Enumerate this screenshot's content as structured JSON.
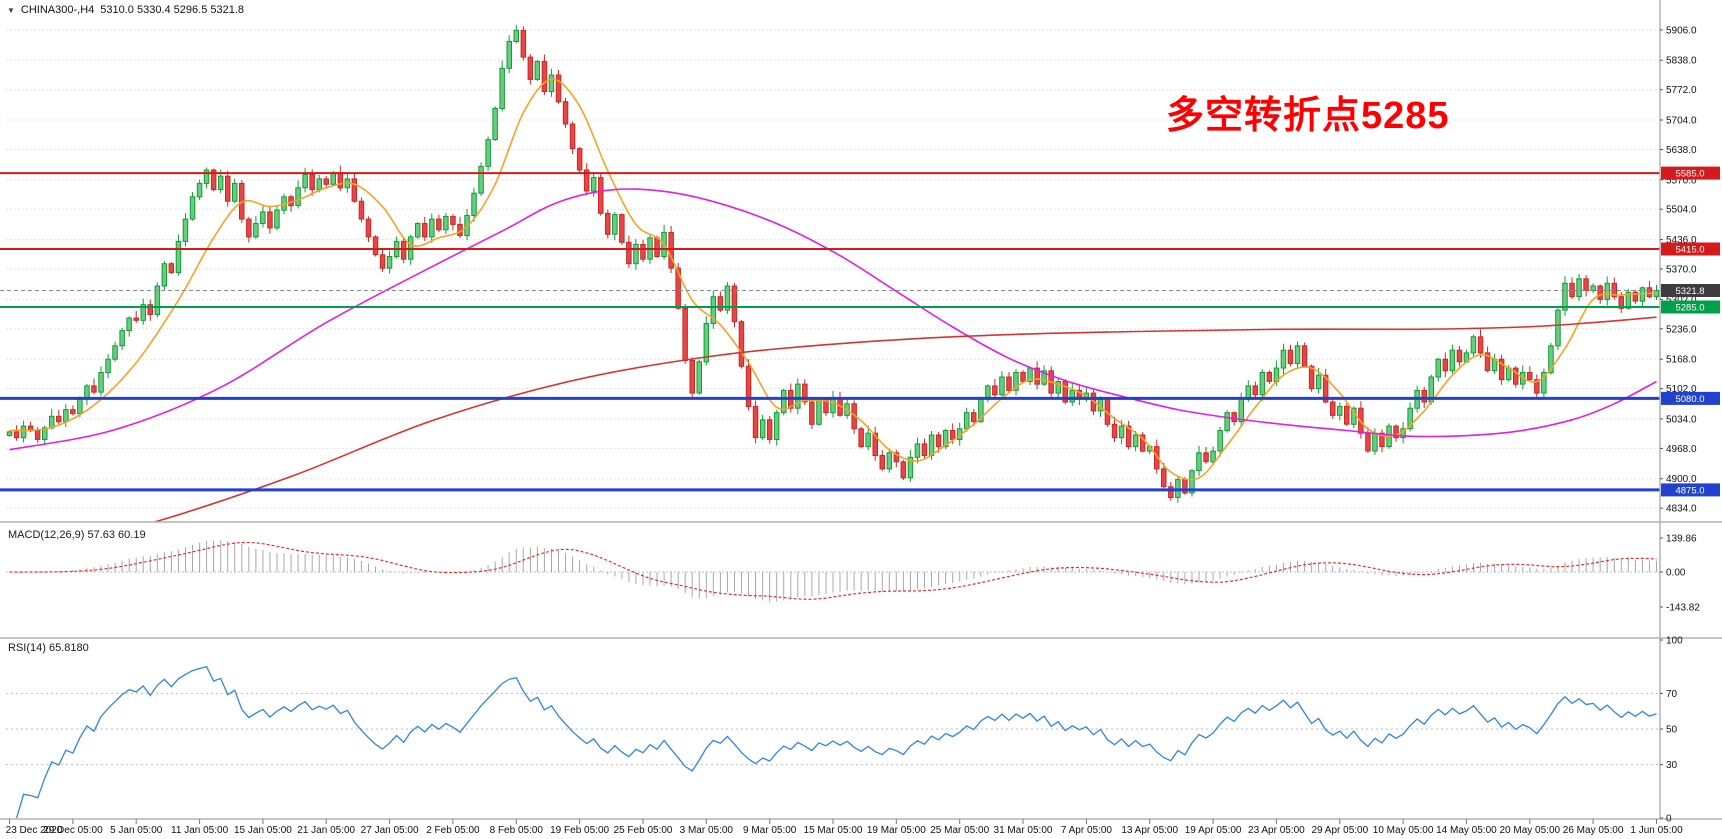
{
  "window": {
    "dropdown_icon": "▼",
    "symbol_label": "CHINA300-,H4",
    "ohlc_line": "5310.0 5330.4 5296.5 5321.8"
  },
  "annotation": {
    "text": "多空转折点5285",
    "color": "#ff0000"
  },
  "chart_data": {
    "type": "candlestick",
    "symbol": "CHINA300-",
    "timeframe": "H4",
    "title": "CHINA300-,H4",
    "ohlc_display": {
      "open": 5310.0,
      "high": 5330.4,
      "low": 5296.5,
      "close": 5321.8
    },
    "ylim": [
      4803,
      5973
    ],
    "y_axis": {
      "ticks": [
        5906,
        5838,
        5772,
        5704,
        5638,
        5570,
        5504,
        5436,
        5370,
        5302,
        5236,
        5168,
        5102,
        5034,
        4968,
        4900,
        4834
      ],
      "decimals": 1
    },
    "x_labels": [
      "23 Dec 2020",
      "29 Dec 05:00",
      "5 Jan 05:00",
      "11 Jan 05:00",
      "15 Jan 05:00",
      "21 Jan 05:00",
      "27 Jan 05:00",
      "2 Feb 05:00",
      "8 Feb 05:00",
      "19 Feb 05:00",
      "25 Feb 05:00",
      "3 Mar 05:00",
      "9 Mar 05:00",
      "15 Mar 05:00",
      "19 Mar 05:00",
      "25 Mar 05:00",
      "31 Mar 05:00",
      "7 Apr 05:00",
      "13 Apr 05:00",
      "19 Apr 05:00",
      "23 Apr 05:00",
      "29 Apr 05:00",
      "10 May 05:00",
      "14 May 05:00",
      "20 May 05:00",
      "26 May 05:00",
      "1 Jun 05:00"
    ],
    "closes": [
      5005,
      4992,
      5018,
      5008,
      4988,
      5014,
      5040,
      5028,
      5055,
      5046,
      5078,
      5108,
      5094,
      5138,
      5168,
      5198,
      5232,
      5260,
      5255,
      5290,
      5268,
      5332,
      5382,
      5362,
      5432,
      5482,
      5532,
      5562,
      5592,
      5548,
      5578,
      5522,
      5562,
      5482,
      5442,
      5472,
      5498,
      5462,
      5502,
      5532,
      5512,
      5552,
      5582,
      5548,
      5572,
      5560,
      5586,
      5552,
      5572,
      5522,
      5482,
      5442,
      5402,
      5372,
      5398,
      5432,
      5392,
      5442,
      5472,
      5442,
      5482,
      5458,
      5488,
      5470,
      5445,
      5490,
      5540,
      5600,
      5660,
      5730,
      5820,
      5880,
      5905,
      5845,
      5795,
      5835,
      5768,
      5805,
      5745,
      5695,
      5640,
      5592,
      5545,
      5575,
      5495,
      5448,
      5492,
      5430,
      5382,
      5425,
      5392,
      5440,
      5398,
      5452,
      5372,
      5282,
      5165,
      5092,
      5162,
      5248,
      5308,
      5278,
      5332,
      5252,
      5152,
      5062,
      4992,
      5032,
      4988,
      5048,
      5098,
      5058,
      5112,
      5072,
      5022,
      5078,
      5048,
      5082,
      5042,
      5068,
      5012,
      4972,
      5002,
      4952,
      4922,
      4958,
      4938,
      4902,
      4948,
      4978,
      4952,
      4998,
      4972,
      5008,
      4988,
      5012,
      5048,
      5028,
      5078,
      5108,
      5088,
      5128,
      5098,
      5138,
      5118,
      5148,
      5112,
      5142,
      5092,
      5118,
      5072,
      5098,
      5078,
      5092,
      5052,
      5078,
      5022,
      4992,
      5018,
      4972,
      4998,
      4962,
      4972,
      4922,
      4882,
      4858,
      4898,
      4868,
      4918,
      4958,
      4938,
      4962,
      5008,
      5048,
      5028,
      5078,
      5108,
      5088,
      5138,
      5118,
      5148,
      5188,
      5158,
      5198,
      5152,
      5102,
      5132,
      5072,
      5042,
      5062,
      5022,
      5058,
      5002,
      4962,
      5002,
      4972,
      5018,
      4992,
      5012,
      5058,
      5098,
      5072,
      5128,
      5168,
      5142,
      5188,
      5162,
      5182,
      5218,
      5182,
      5142,
      5168,
      5122,
      5148,
      5112,
      5138,
      5122,
      5092,
      5138,
      5198,
      5278,
      5338,
      5308,
      5348,
      5322,
      5332,
      5302,
      5338,
      5308,
      5282,
      5318,
      5298,
      5328,
      5308,
      5321.8
    ],
    "moving_averages": [
      {
        "name": "ma-fast",
        "color": "#f5a324",
        "points": [
          [
            0,
            5008
          ],
          [
            6,
            5015
          ],
          [
            12,
            5065
          ],
          [
            18,
            5160
          ],
          [
            24,
            5300
          ],
          [
            29,
            5440
          ],
          [
            33,
            5520
          ],
          [
            37,
            5510
          ],
          [
            41,
            5525
          ],
          [
            45,
            5552
          ],
          [
            49,
            5560
          ],
          [
            53,
            5510
          ],
          [
            57,
            5425
          ],
          [
            61,
            5440
          ],
          [
            65,
            5465
          ],
          [
            69,
            5560
          ],
          [
            73,
            5720
          ],
          [
            77,
            5795
          ],
          [
            81,
            5735
          ],
          [
            85,
            5590
          ],
          [
            89,
            5470
          ],
          [
            93,
            5425
          ],
          [
            97,
            5300
          ],
          [
            101,
            5245
          ],
          [
            105,
            5160
          ],
          [
            109,
            5060
          ],
          [
            113,
            5075
          ],
          [
            117,
            5070
          ],
          [
            121,
            5030
          ],
          [
            125,
            4965
          ],
          [
            129,
            4940
          ],
          [
            133,
            4975
          ],
          [
            137,
            5022
          ],
          [
            141,
            5080
          ],
          [
            145,
            5122
          ],
          [
            149,
            5112
          ],
          [
            153,
            5085
          ],
          [
            157,
            5035
          ],
          [
            161,
            4990
          ],
          [
            165,
            4915
          ],
          [
            169,
            4902
          ],
          [
            173,
            4975
          ],
          [
            177,
            5060
          ],
          [
            181,
            5132
          ],
          [
            185,
            5148
          ],
          [
            189,
            5092
          ],
          [
            193,
            5012
          ],
          [
            197,
            4998
          ],
          [
            201,
            5052
          ],
          [
            205,
            5132
          ],
          [
            209,
            5178
          ],
          [
            213,
            5148
          ],
          [
            217,
            5118
          ],
          [
            221,
            5192
          ],
          [
            225,
            5302
          ],
          [
            229,
            5312
          ],
          [
            234,
            5316
          ]
        ]
      },
      {
        "name": "ma-medium",
        "color": "#e31ee3",
        "points": [
          [
            0,
            4965
          ],
          [
            15,
            5010
          ],
          [
            30,
            5105
          ],
          [
            45,
            5250
          ],
          [
            60,
            5375
          ],
          [
            70,
            5455
          ],
          [
            78,
            5520
          ],
          [
            86,
            5548
          ],
          [
            94,
            5542
          ],
          [
            102,
            5512
          ],
          [
            110,
            5465
          ],
          [
            118,
            5400
          ],
          [
            126,
            5320
          ],
          [
            134,
            5240
          ],
          [
            142,
            5170
          ],
          [
            150,
            5120
          ],
          [
            158,
            5085
          ],
          [
            166,
            5055
          ],
          [
            174,
            5035
          ],
          [
            182,
            5020
          ],
          [
            190,
            5008
          ],
          [
            198,
            4996
          ],
          [
            206,
            4996
          ],
          [
            214,
            5006
          ],
          [
            222,
            5032
          ],
          [
            228,
            5068
          ],
          [
            234,
            5118
          ]
        ]
      },
      {
        "name": "ma-slow",
        "color": "#d63333",
        "points": [
          [
            0,
            4720
          ],
          [
            20,
            4800
          ],
          [
            40,
            4905
          ],
          [
            60,
            5030
          ],
          [
            80,
            5120
          ],
          [
            100,
            5175
          ],
          [
            120,
            5205
          ],
          [
            140,
            5222
          ],
          [
            160,
            5230
          ],
          [
            180,
            5235
          ],
          [
            200,
            5235
          ],
          [
            215,
            5240
          ],
          [
            225,
            5250
          ],
          [
            234,
            5262
          ]
        ]
      }
    ],
    "h_lines": [
      {
        "name": "resistance-1",
        "price": 5585.0,
        "label": "5585.0",
        "color": "#d41a1a",
        "width": 2
      },
      {
        "name": "resistance-2",
        "price": 5415.0,
        "label": "5415.0",
        "color": "#d41a1a",
        "width": 2
      },
      {
        "name": "pivot-green",
        "price": 5285.0,
        "label": "5285.0",
        "color": "#009f4a",
        "width": 2
      },
      {
        "name": "support-1",
        "price": 5080.0,
        "label": "5080.0",
        "color": "#2141cf",
        "width": 3
      },
      {
        "name": "support-2",
        "price": 4875.0,
        "label": "4875.0",
        "color": "#2141cf",
        "width": 3
      }
    ],
    "current_price": {
      "value": 5321.8,
      "label": "5321.8",
      "line_color": "#8a8a8a",
      "tag_bg": "#3d3d3d"
    },
    "colors": {
      "up_fill": "#66cf7e",
      "up_stroke": "#149a38",
      "down_fill": "#e84545",
      "down_stroke": "#c62828",
      "macd_hist": "#a8a8a8",
      "macd_signal": "#e03131",
      "rsi_line": "#2e86de",
      "grid": "#e3e3e3",
      "axis_text": "#111111",
      "separator": "#b3b3b3"
    },
    "macd": {
      "label": "MACD(12,26,9) 57.63 60.19",
      "fast": 12,
      "slow": 26,
      "signal_period": 9,
      "value": 57.63,
      "signal": 60.19,
      "range": [
        -255,
        185
      ],
      "scale_ticks": [
        139.86,
        0,
        -143.82
      ]
    },
    "rsi": {
      "label": "RSI(14) 65.8180",
      "period": 14,
      "value": 65.818,
      "range": [
        0,
        100
      ],
      "levels": [
        70,
        50,
        30
      ],
      "scale_ticks": [
        100,
        70,
        50,
        30,
        0
      ]
    }
  }
}
